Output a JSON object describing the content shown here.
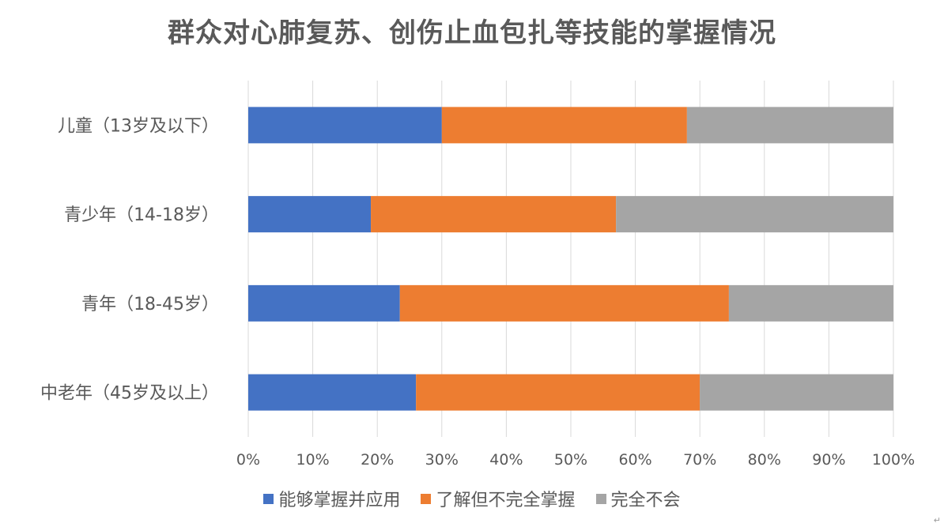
{
  "chart_data": {
    "type": "bar",
    "orientation": "horizontal",
    "stacked": true,
    "title": "群众对心肺复苏、创伤止血包扎等技能的掌握情况",
    "categories": [
      "儿童（13岁及以下）",
      "青少年（14-18岁）",
      "青年（18-45岁）",
      "中老年（45岁及以上）"
    ],
    "series": [
      {
        "name": "能够掌握并应用",
        "color": "#4472C4",
        "values": [
          30,
          19,
          23.5,
          26
        ]
      },
      {
        "name": "了解但不完全掌握",
        "color": "#ED7D31",
        "values": [
          38,
          38,
          51,
          44
        ]
      },
      {
        "name": "完全不会",
        "color": "#A5A5A5",
        "values": [
          32,
          43,
          25.5,
          30
        ]
      }
    ],
    "xlim": [
      0,
      100
    ],
    "x_ticks": [
      "0%",
      "10%",
      "20%",
      "30%",
      "40%",
      "50%",
      "60%",
      "70%",
      "80%",
      "90%",
      "100%"
    ],
    "grid": true,
    "legend_position": "bottom"
  },
  "corner_mark": "↵"
}
